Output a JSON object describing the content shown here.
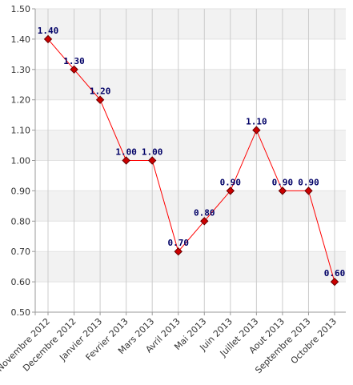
{
  "chart_data": {
    "type": "line",
    "title": "",
    "xlabel": "",
    "ylabel": "",
    "ylim": [
      0.5,
      1.5
    ],
    "yticks": [
      "0.50",
      "0.60",
      "0.70",
      "0.80",
      "0.90",
      "1.00",
      "1.10",
      "1.20",
      "1.30",
      "1.40",
      "1.50"
    ],
    "categories": [
      "Novembre 2012",
      "Decembre 2012",
      "Janvier 2013",
      "Fevrier 2013",
      "Mars 2013",
      "Avril 2013",
      "Mai 2013",
      "Juin 2013",
      "Juillet 2013",
      "Aout 2013",
      "Septembre 2013",
      "Octobre 2013"
    ],
    "values": [
      1.4,
      1.3,
      1.2,
      1.0,
      1.0,
      0.7,
      0.8,
      0.9,
      1.1,
      0.9,
      0.9,
      0.6
    ],
    "data_labels": [
      "1.40",
      "1.30",
      "1.20",
      "1.00",
      "1.00",
      "0.70",
      "0.80",
      "0.90",
      "1.10",
      "0.90",
      "0.90",
      "0.60"
    ],
    "grid": true,
    "colors": {
      "line": "#ff0000",
      "marker_fill": "#cc0000",
      "marker_stroke": "#660000",
      "band_alt": "#f2f2f2",
      "grid": "#cccccc",
      "label": "#000066"
    }
  }
}
